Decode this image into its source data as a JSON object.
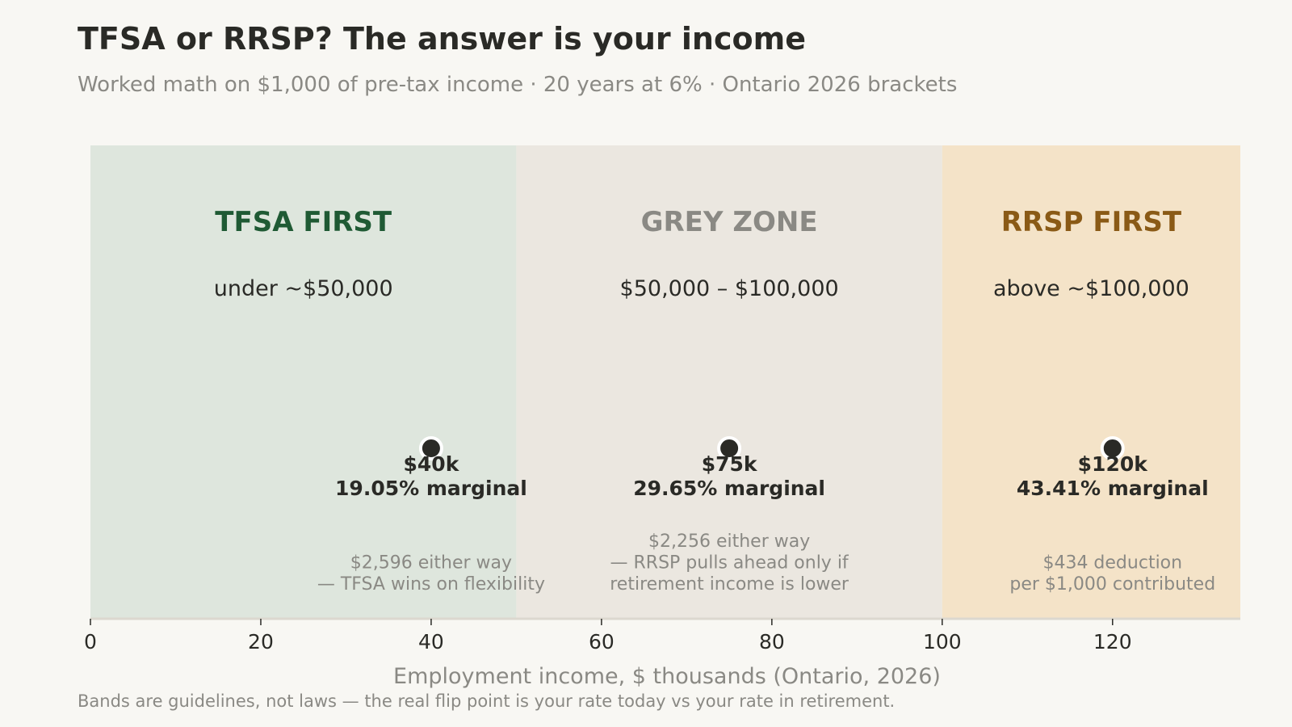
{
  "header": {
    "title": "TFSA or RRSP? The answer is your income",
    "subtitle": "Worked math on $1,000 of pre-tax income · 20 years at 6% · Ontario 2026 brackets"
  },
  "footnote": "Bands are guidelines, not laws — the real flip point is your rate today vs your rate in retirement.",
  "chart_data": {
    "type": "scatter",
    "title": "TFSA or RRSP? The answer is your income",
    "subtitle": "Worked math on $1,000 of pre-tax income · 20 years at 6% · Ontario 2026 brackets",
    "xlabel": "Employment income, $ thousands (Ontario, 2026)",
    "ylabel": "",
    "xlim": [
      0,
      135
    ],
    "xticks": [
      0,
      20,
      40,
      60,
      80,
      100,
      120
    ],
    "grid": false,
    "bands": [
      {
        "from": 0,
        "to": 50,
        "title": "TFSA FIRST",
        "range_label": "under ~$50,000",
        "fill": "#dee6dd",
        "title_color": "#1f5a34"
      },
      {
        "from": 50,
        "to": 100,
        "title": "GREY ZONE",
        "range_label": "$50,000 – $100,000",
        "fill": "#ebe7e0",
        "title_color": "#8a8984"
      },
      {
        "from": 100,
        "to": 135,
        "title": "RRSP FIRST",
        "range_label": "above ~$100,000",
        "fill": "#f4e3c8",
        "title_color": "#8a5a16"
      }
    ],
    "points": [
      {
        "x": 40,
        "label": "$40k",
        "marginal": "19.05% marginal",
        "note": [
          "$2,596 either way",
          "— TFSA wins on flexibility"
        ]
      },
      {
        "x": 75,
        "label": "$75k",
        "marginal": "29.65% marginal",
        "note": [
          "$2,256 either way",
          "— RRSP pulls ahead only if",
          "retirement income is lower"
        ]
      },
      {
        "x": 120,
        "label": "$120k",
        "marginal": "43.41% marginal",
        "note": [
          "$434 deduction",
          "per $1,000 contributed"
        ]
      }
    ],
    "colors": {
      "text": "#2a2a26",
      "muted": "#8a8984",
      "marker": "#2a2a26",
      "axis": "#dcd8cf"
    }
  }
}
